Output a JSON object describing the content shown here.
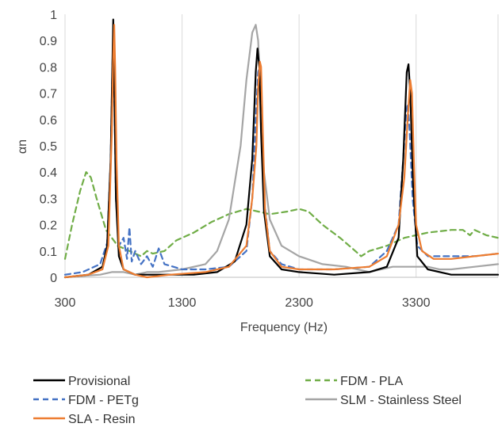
{
  "chart_data": {
    "type": "line",
    "title": "",
    "xlabel": "Frequency (Hz)",
    "ylabel": "αn",
    "xlim": [
      300,
      4000
    ],
    "ylim": [
      0,
      1
    ],
    "x_ticks": [
      300,
      1300,
      2300,
      3300
    ],
    "x_tick_labels": [
      "300",
      "1300",
      "2300",
      "3300"
    ],
    "y_ticks": [
      0,
      0.1,
      0.2,
      0.3,
      0.4,
      0.5,
      0.6,
      0.7,
      0.8,
      0.9,
      1
    ],
    "y_tick_labels": [
      "0",
      "0.1",
      "0.2",
      "0.3",
      "0.4",
      "0.5",
      "0.6",
      "0.7",
      "0.8",
      "0.9",
      "1"
    ],
    "grid": "vertical",
    "legend_position": "bottom",
    "series": [
      {
        "name": "Provisional",
        "color": "#000000",
        "dash": "solid",
        "x": [
          300,
          500,
          620,
          660,
          690,
          705,
          712,
          720,
          735,
          760,
          800,
          900,
          1100,
          1400,
          1600,
          1750,
          1850,
          1900,
          1930,
          1945,
          1960,
          1975,
          2000,
          2050,
          2150,
          2300,
          2600,
          2900,
          3050,
          3150,
          3190,
          3220,
          3235,
          3250,
          3275,
          3310,
          3400,
          3600,
          4000
        ],
        "y": [
          0.0,
          0.01,
          0.04,
          0.12,
          0.45,
          0.82,
          0.98,
          0.75,
          0.3,
          0.08,
          0.03,
          0.01,
          0.01,
          0.01,
          0.02,
          0.06,
          0.2,
          0.45,
          0.78,
          0.87,
          0.8,
          0.55,
          0.25,
          0.08,
          0.03,
          0.02,
          0.01,
          0.02,
          0.04,
          0.15,
          0.45,
          0.78,
          0.81,
          0.7,
          0.35,
          0.08,
          0.03,
          0.01,
          0.01
        ]
      },
      {
        "name": "FDM - PLA",
        "color": "#70ad47",
        "dash": "dashed",
        "x": [
          300,
          360,
          430,
          480,
          520,
          570,
          650,
          750,
          850,
          950,
          1000,
          1050,
          1150,
          1250,
          1400,
          1550,
          1700,
          1850,
          1950,
          2050,
          2200,
          2300,
          2380,
          2500,
          2650,
          2780,
          2830,
          2900,
          3050,
          3200,
          3400,
          3600,
          3700,
          3760,
          3800,
          3900,
          4000
        ],
        "y": [
          0.07,
          0.2,
          0.33,
          0.4,
          0.38,
          0.3,
          0.18,
          0.12,
          0.1,
          0.08,
          0.1,
          0.09,
          0.1,
          0.14,
          0.17,
          0.21,
          0.24,
          0.26,
          0.25,
          0.24,
          0.25,
          0.26,
          0.25,
          0.2,
          0.15,
          0.1,
          0.08,
          0.1,
          0.12,
          0.15,
          0.17,
          0.18,
          0.18,
          0.16,
          0.18,
          0.16,
          0.15
        ]
      },
      {
        "name": "FDM - PETg",
        "color": "#4472c4",
        "dash": "dashed",
        "x": [
          300,
          450,
          600,
          660,
          690,
          705,
          712,
          720,
          735,
          760,
          800,
          830,
          850,
          870,
          900,
          950,
          1000,
          1050,
          1100,
          1150,
          1300,
          1500,
          1700,
          1850,
          1900,
          1930,
          1950,
          1965,
          1980,
          2000,
          2050,
          2150,
          2300,
          2600,
          2900,
          3050,
          3150,
          3190,
          3215,
          3230,
          3245,
          3270,
          3310,
          3400,
          3600,
          3800,
          4000
        ],
        "y": [
          0.01,
          0.02,
          0.05,
          0.13,
          0.45,
          0.8,
          0.92,
          0.75,
          0.3,
          0.12,
          0.15,
          0.07,
          0.19,
          0.06,
          0.1,
          0.05,
          0.08,
          0.04,
          0.11,
          0.05,
          0.03,
          0.03,
          0.04,
          0.1,
          0.3,
          0.6,
          0.78,
          0.8,
          0.6,
          0.3,
          0.1,
          0.05,
          0.03,
          0.03,
          0.04,
          0.1,
          0.2,
          0.45,
          0.63,
          0.66,
          0.55,
          0.3,
          0.12,
          0.08,
          0.08,
          0.08,
          0.09
        ]
      },
      {
        "name": "SLM - Stainless Steel",
        "color": "#a5a5a5",
        "dash": "solid",
        "x": [
          300,
          600,
          700,
          800,
          900,
          1000,
          1100,
          1300,
          1500,
          1600,
          1700,
          1800,
          1850,
          1900,
          1930,
          1950,
          1960,
          1975,
          2000,
          2050,
          2150,
          2300,
          2500,
          2700,
          2800,
          2900,
          3000,
          3100,
          3200,
          3300,
          3400,
          3500,
          3600,
          3800,
          4000
        ],
        "y": [
          0.0,
          0.01,
          0.02,
          0.02,
          0.01,
          0.02,
          0.02,
          0.03,
          0.05,
          0.1,
          0.22,
          0.5,
          0.75,
          0.93,
          0.96,
          0.9,
          0.8,
          0.6,
          0.4,
          0.22,
          0.12,
          0.08,
          0.05,
          0.04,
          0.03,
          0.02,
          0.03,
          0.04,
          0.04,
          0.04,
          0.04,
          0.03,
          0.03,
          0.04,
          0.05
        ]
      },
      {
        "name": "SLA - Resin",
        "color": "#ed7d31",
        "dash": "solid",
        "x": [
          300,
          500,
          620,
          670,
          700,
          712,
          720,
          728,
          740,
          760,
          800,
          900,
          1000,
          1200,
          1500,
          1700,
          1850,
          1900,
          1935,
          1950,
          1965,
          1975,
          1990,
          2010,
          2050,
          2150,
          2300,
          2600,
          2900,
          3050,
          3150,
          3200,
          3230,
          3250,
          3265,
          3280,
          3300,
          3350,
          3450,
          3600,
          3800,
          4000
        ],
        "y": [
          0.0,
          0.01,
          0.03,
          0.12,
          0.55,
          0.85,
          0.96,
          0.8,
          0.45,
          0.12,
          0.03,
          0.01,
          0.0,
          0.01,
          0.02,
          0.04,
          0.12,
          0.3,
          0.5,
          0.72,
          0.82,
          0.8,
          0.55,
          0.25,
          0.1,
          0.04,
          0.03,
          0.03,
          0.04,
          0.08,
          0.2,
          0.38,
          0.62,
          0.75,
          0.7,
          0.45,
          0.2,
          0.1,
          0.07,
          0.07,
          0.08,
          0.09
        ]
      }
    ]
  }
}
